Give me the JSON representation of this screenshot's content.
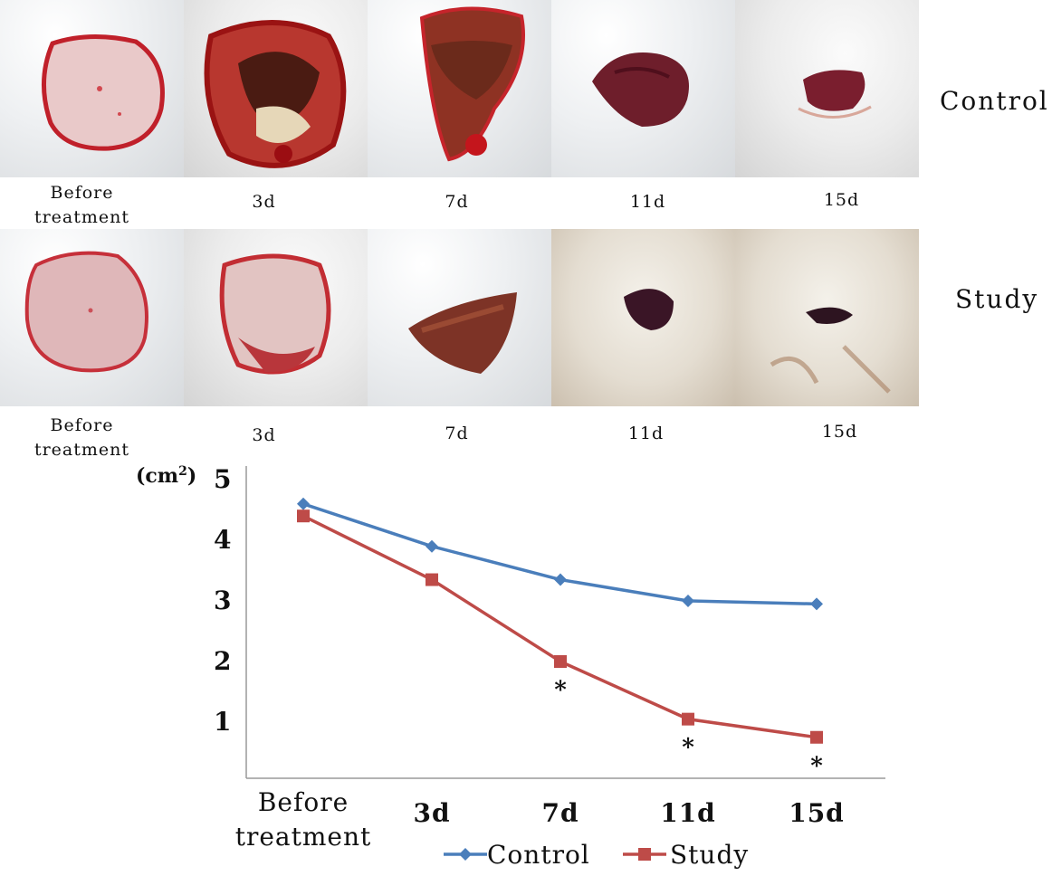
{
  "rows": {
    "control_label": "Control",
    "study_label": "Study"
  },
  "timepoints": {
    "t0_line1": "Before",
    "t0_line2": "treatment",
    "t1": "3d",
    "t2": "7d",
    "t3": "11d",
    "t4": "15d"
  },
  "chart_data": {
    "type": "line",
    "title": "",
    "ylabel": "(cm²)",
    "xlabel": "",
    "categories": [
      "Before treatment",
      "3d",
      "7d",
      "11d",
      "15d"
    ],
    "ylim": [
      0,
      5
    ],
    "yticks": [
      1,
      2,
      3,
      4,
      5
    ],
    "series": [
      {
        "name": "Control",
        "color": "#4a7ebb",
        "marker": "diamond",
        "values": [
          4.6,
          3.9,
          3.35,
          3.0,
          2.95
        ]
      },
      {
        "name": "Study",
        "color": "#be4b48",
        "marker": "square",
        "values": [
          4.4,
          3.35,
          2.0,
          1.05,
          0.75
        ]
      }
    ],
    "annotations": [
      {
        "series": "Study",
        "category": "7d",
        "text": "*"
      },
      {
        "series": "Study",
        "category": "11d",
        "text": "*"
      },
      {
        "series": "Study",
        "category": "15d",
        "text": "*"
      }
    ],
    "legend": [
      "Control",
      "Study"
    ],
    "legend_position": "bottom"
  }
}
